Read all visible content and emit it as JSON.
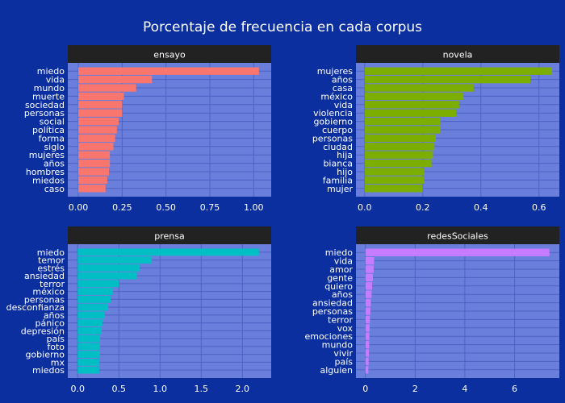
{
  "title": "Porcentaje de frecuencia en cada corpus",
  "colors": {
    "background": "#0c2fa0",
    "panel": "#6a7fdc",
    "grid": "#4d62c4",
    "strip": "#222222",
    "text": "#ffffff"
  },
  "chart_data": [
    {
      "type": "bar",
      "orientation": "horizontal",
      "facet": "ensayo",
      "color": "#f8766d",
      "categories": [
        "miedo",
        "vida",
        "mundo",
        "muerte",
        "sociedad",
        "personas",
        "social",
        "política",
        "forma",
        "siglo",
        "mujeres",
        "años",
        "hombres",
        "miedos",
        "caso"
      ],
      "values": [
        1.03,
        0.42,
        0.33,
        0.26,
        0.25,
        0.25,
        0.23,
        0.22,
        0.21,
        0.2,
        0.18,
        0.18,
        0.175,
        0.165,
        0.155
      ],
      "xlim": [
        -0.06,
        1.1
      ],
      "xticks": [
        0,
        0.25,
        0.5,
        0.75,
        1.0
      ],
      "xtick_labels": [
        "0.00",
        "0.25",
        "0.50",
        "0.75",
        "1.00"
      ],
      "grid": true
    },
    {
      "type": "bar",
      "orientation": "horizontal",
      "facet": "novela",
      "color": "#7cae00",
      "categories": [
        "mujeres",
        "años",
        "casa",
        "méxico",
        "vida",
        "violencia",
        "gobierno",
        "cuerpo",
        "personas",
        "ciudad",
        "hija",
        "bianca",
        "hijo",
        "familia",
        "mujer"
      ],
      "values": [
        0.645,
        0.57,
        0.375,
        0.34,
        0.325,
        0.315,
        0.26,
        0.26,
        0.245,
        0.24,
        0.235,
        0.23,
        0.205,
        0.205,
        0.2
      ],
      "xlim": [
        -0.03,
        0.67
      ],
      "xticks": [
        0,
        0.2,
        0.4,
        0.6
      ],
      "xtick_labels": [
        "0.0",
        "0.2",
        "0.4",
        "0.6"
      ],
      "grid": true
    },
    {
      "type": "bar",
      "orientation": "horizontal",
      "facet": "prensa",
      "color": "#00bfc4",
      "categories": [
        "miedo",
        "temor",
        "estrés",
        "ansiedad",
        "terror",
        "méxico",
        "personas",
        "desconfianza",
        "años",
        "pánico",
        "depresión",
        "país",
        "foto",
        "gobierno",
        "mx",
        "miedos"
      ],
      "values": [
        2.2,
        0.9,
        0.75,
        0.72,
        0.5,
        0.43,
        0.4,
        0.37,
        0.33,
        0.3,
        0.29,
        0.27,
        0.27,
        0.27,
        0.26,
        0.26
      ],
      "xlim": [
        -0.12,
        2.35
      ],
      "xticks": [
        0,
        0.5,
        1,
        1.5,
        2
      ],
      "xtick_labels": [
        "0.0",
        "0.5",
        "1.0",
        "1.5",
        "2.0"
      ],
      "grid": true
    },
    {
      "type": "bar",
      "orientation": "horizontal",
      "facet": "redesSociales",
      "color": "#c77cff",
      "categories": [
        "miedo",
        "vida",
        "amor",
        "gente",
        "quiero",
        "años",
        "ansiedad",
        "personas",
        "terror",
        "vox",
        "emociones",
        "mundo",
        "vivir",
        "país",
        "alguien"
      ],
      "values": [
        7.4,
        0.35,
        0.33,
        0.3,
        0.27,
        0.25,
        0.22,
        0.2,
        0.18,
        0.17,
        0.16,
        0.15,
        0.14,
        0.13,
        0.12
      ],
      "xlim": [
        -0.38,
        7.8
      ],
      "xticks": [
        0,
        2,
        4,
        6
      ],
      "xtick_labels": [
        "0",
        "2",
        "4",
        "6"
      ],
      "grid": true
    }
  ]
}
